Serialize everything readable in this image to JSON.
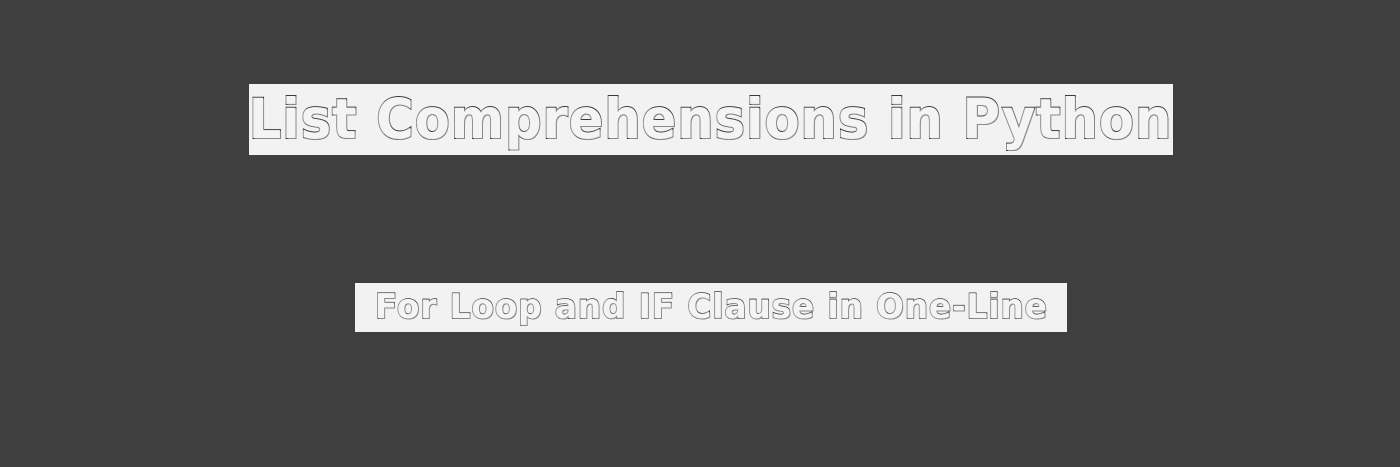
{
  "banner": {
    "title": "List Comprehensions in Python",
    "subtitle": "For Loop and IF Clause in One-Line"
  },
  "colors": {
    "background": "#3f3f3f",
    "label_background": "#f2f2f2",
    "text_outline": "#3a3a3a"
  }
}
